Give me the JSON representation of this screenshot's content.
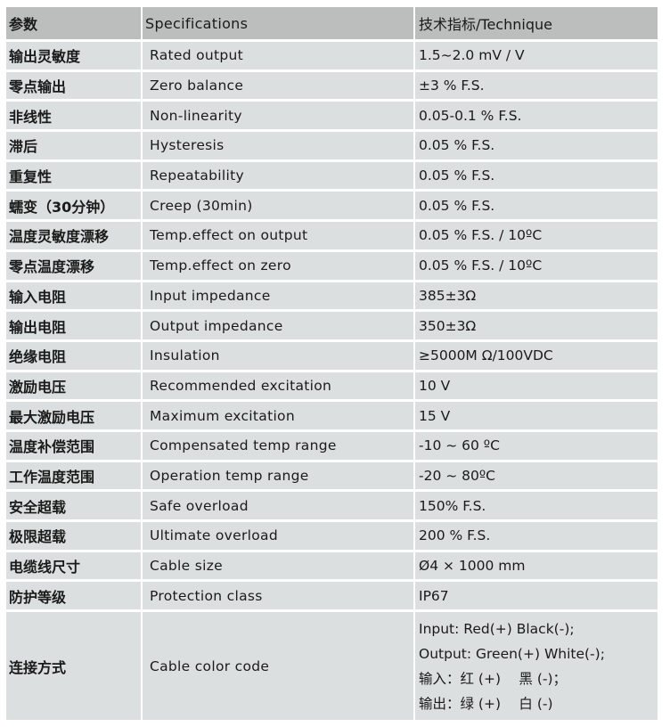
{
  "header": {
    "param": "参数",
    "spec": "Specifications",
    "technique": "技术指标/Technique"
  },
  "rows": [
    {
      "cn": "输出灵敏度",
      "en": "Rated output",
      "value": "1.5~2.0 mV / V"
    },
    {
      "cn": "零点输出",
      "en": "Zero balance",
      "value": "±3 % F.S."
    },
    {
      "cn": "非线性",
      "en": "Non-linearity",
      "value": "0.05-0.1 % F.S."
    },
    {
      "cn": "滞后",
      "en": "Hysteresis",
      "value": "0.05 % F.S."
    },
    {
      "cn": "重复性",
      "en": "Repeatability",
      "value": "0.05 % F.S."
    },
    {
      "cn": "蠕变（30分钟）",
      "en": "Creep (30min)",
      "value": "0.05 % F.S."
    },
    {
      "cn": "温度灵敏度漂移",
      "en": "Temp.effect on output",
      "value": "0.05 % F.S. / 10ºC"
    },
    {
      "cn": "零点温度漂移",
      "en": "Temp.effect on zero",
      "value": "0.05 % F.S. / 10ºC"
    },
    {
      "cn": "输入电阻",
      "en": "Input impedance",
      "value": "385±3Ω"
    },
    {
      "cn": "输出电阻",
      "en": "Output impedance",
      "value": "350±3Ω"
    },
    {
      "cn": "绝缘电阻",
      "en": "Insulation",
      "value": "≥5000M Ω/100VDC"
    },
    {
      "cn": "激励电压",
      "en": "Recommended excitation",
      "value": "10 V"
    },
    {
      "cn": "最大激励电压",
      "en": "Maximum excitation",
      "value": "15 V"
    },
    {
      "cn": "温度补偿范围",
      "en": "Compensated temp range",
      "value": "-10 ~ 60 ºC"
    },
    {
      "cn": "工作温度范围",
      "en": "Operation temp range",
      "value": "-20 ~ 80ºC"
    },
    {
      "cn": "安全超载",
      "en": "Safe overload",
      "value": "150% F.S."
    },
    {
      "cn": "极限超载",
      "en": "Ultimate overload",
      "value": "200 % F.S."
    },
    {
      "cn": "电缆线尺寸",
      "en": "Cable size",
      "value": "Ø4 × 1000 mm"
    },
    {
      "cn": "防护等级",
      "en": "Protection class",
      "value": "IP67"
    }
  ],
  "cable": {
    "cn": "连接方式",
    "en": "Cable color code",
    "lines": [
      "Input: Red(+) Black(-);",
      "Output: Green(+) White(-);",
      "输入：红 (+)　 黑 (-)；",
      "输出：绿 (+)　 白 (-)"
    ]
  }
}
